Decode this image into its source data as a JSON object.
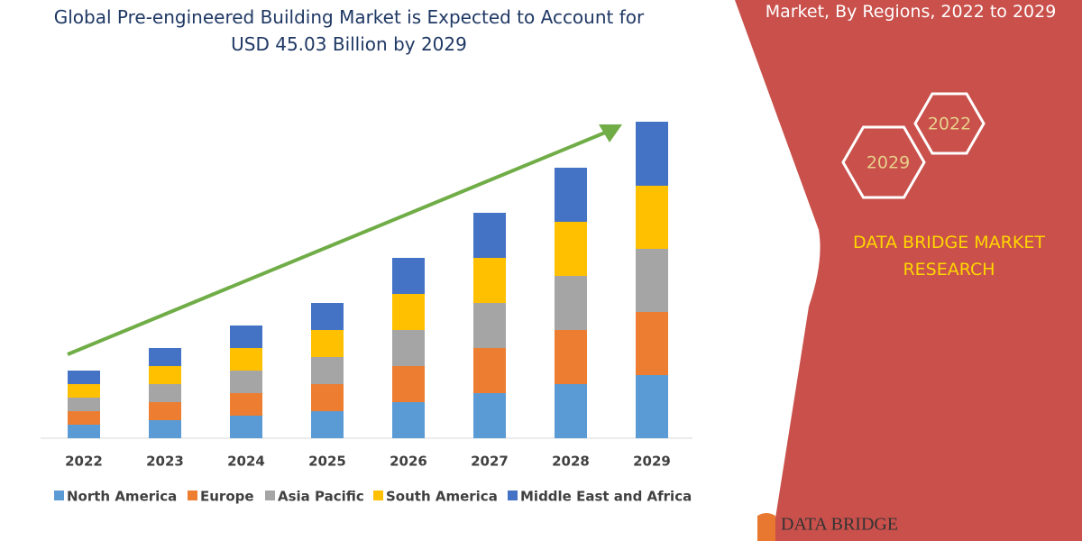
{
  "chart_data": {
    "type": "stacked_bar",
    "title": "Global Pre-engineered Building Market is Expected to Account for USD 45.03 Billion by 2029",
    "categories": [
      "2022",
      "2023",
      "2024",
      "2025",
      "2026",
      "2027",
      "2028",
      "2029"
    ],
    "series": [
      {
        "name": "North America",
        "color": "#5b9bd5",
        "values": [
          15,
          20,
          25,
          30,
          40,
          50,
          60,
          70
        ]
      },
      {
        "name": "Europe",
        "color": "#ed7d31",
        "values": [
          15,
          20,
          25,
          30,
          40,
          50,
          60,
          70
        ]
      },
      {
        "name": "Asia Pacific",
        "color": "#a5a5a5",
        "values": [
          15,
          20,
          25,
          30,
          40,
          50,
          60,
          70
        ]
      },
      {
        "name": "South America",
        "color": "#ffc000",
        "values": [
          15,
          20,
          25,
          30,
          40,
          50,
          60,
          70
        ]
      },
      {
        "name": "Middle East and Africa",
        "color": "#4472c4",
        "values": [
          15,
          20,
          25,
          30,
          40,
          50,
          60,
          71
        ]
      }
    ]
  },
  "side_panel": {
    "heading": "Market, By Regions, 2022 to 2029",
    "hexagons": [
      "2022",
      "2029"
    ],
    "brand": "DATA BRIDGE MARKET RESEARCH",
    "logo": "DATA BRIDGE"
  }
}
